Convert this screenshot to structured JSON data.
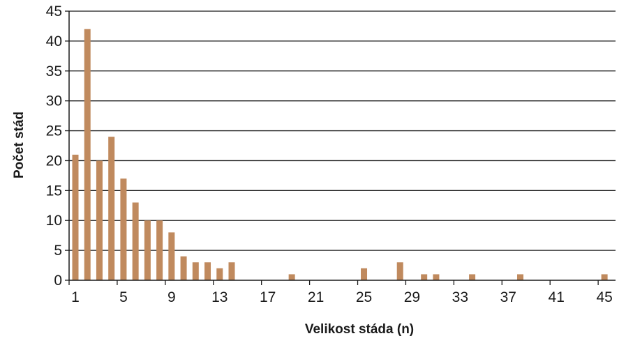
{
  "chart_data": {
    "type": "bar",
    "xlabel": "Velikost stáda (n)",
    "ylabel": "Počet stád",
    "ylim": [
      0,
      45
    ],
    "yticks": [
      0,
      5,
      10,
      15,
      20,
      25,
      30,
      35,
      40,
      45
    ],
    "xlim": [
      1,
      45
    ],
    "xticks": [
      1,
      5,
      9,
      13,
      17,
      21,
      25,
      29,
      33,
      37,
      41,
      45
    ],
    "grid": "horizontal",
    "bar_color": "#c08a5e",
    "points": [
      {
        "x": 1,
        "y": 21
      },
      {
        "x": 2,
        "y": 42
      },
      {
        "x": 3,
        "y": 20
      },
      {
        "x": 4,
        "y": 24
      },
      {
        "x": 5,
        "y": 17
      },
      {
        "x": 6,
        "y": 13
      },
      {
        "x": 7,
        "y": 10
      },
      {
        "x": 8,
        "y": 10
      },
      {
        "x": 9,
        "y": 8
      },
      {
        "x": 10,
        "y": 4
      },
      {
        "x": 11,
        "y": 3
      },
      {
        "x": 12,
        "y": 3
      },
      {
        "x": 13,
        "y": 2
      },
      {
        "x": 14,
        "y": 3
      },
      {
        "x": 19,
        "y": 1
      },
      {
        "x": 25,
        "y": 2
      },
      {
        "x": 28,
        "y": 3
      },
      {
        "x": 30,
        "y": 1
      },
      {
        "x": 31,
        "y": 1
      },
      {
        "x": 34,
        "y": 1
      },
      {
        "x": 38,
        "y": 1
      },
      {
        "x": 45,
        "y": 1
      }
    ]
  }
}
